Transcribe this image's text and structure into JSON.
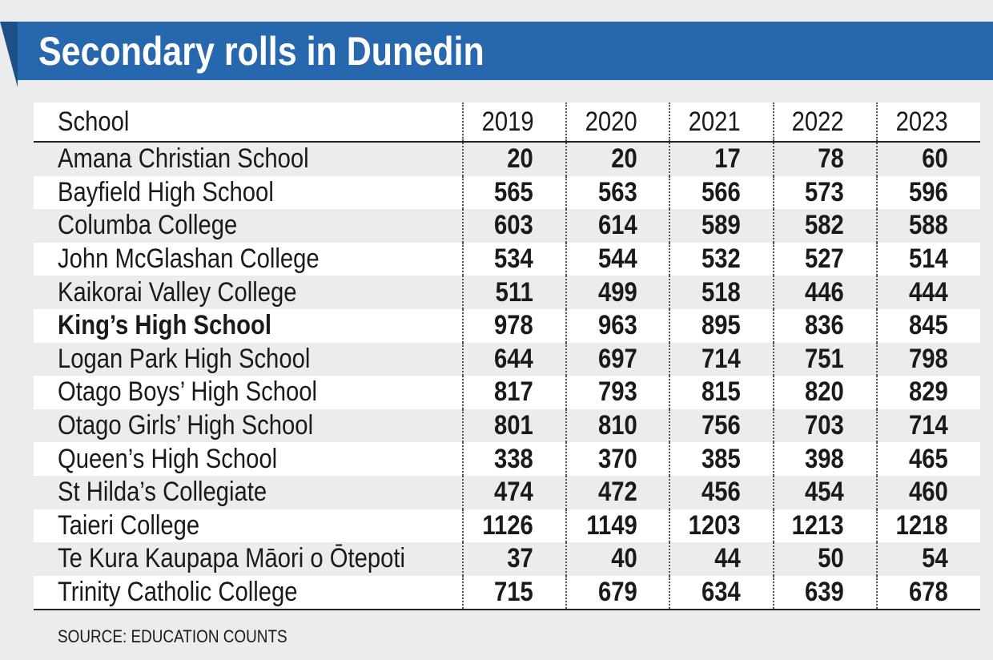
{
  "title": "Secondary rolls in Dunedin",
  "source": "SOURCE: EDUCATION COUNTS",
  "colors": {
    "banner": "#2767ad",
    "banner_fold": "#1e4f86",
    "band": "#ffffff",
    "background": "#ececec"
  },
  "chart_data": {
    "type": "table",
    "title": "Secondary rolls in Dunedin",
    "columns": [
      "School",
      "2019",
      "2020",
      "2021",
      "2022",
      "2023"
    ],
    "rows": [
      {
        "school": "Amana Christian School",
        "values": [
          20,
          20,
          17,
          78,
          60
        ],
        "bold": false
      },
      {
        "school": "Bayfield High School",
        "values": [
          565,
          563,
          566,
          573,
          596
        ],
        "bold": false
      },
      {
        "school": "Columba College",
        "values": [
          603,
          614,
          589,
          582,
          588
        ],
        "bold": false
      },
      {
        "school": "John McGlashan College",
        "values": [
          534,
          544,
          532,
          527,
          514
        ],
        "bold": false
      },
      {
        "school": "Kaikorai Valley College",
        "values": [
          511,
          499,
          518,
          446,
          444
        ],
        "bold": false
      },
      {
        "school": "King’s High School",
        "values": [
          978,
          963,
          895,
          836,
          845
        ],
        "bold": true
      },
      {
        "school": "Logan Park High School",
        "values": [
          644,
          697,
          714,
          751,
          798
        ],
        "bold": false
      },
      {
        "school": "Otago Boys’ High School",
        "values": [
          817,
          793,
          815,
          820,
          829
        ],
        "bold": false
      },
      {
        "school": "Otago Girls’ High School",
        "values": [
          801,
          810,
          756,
          703,
          714
        ],
        "bold": false
      },
      {
        "school": "Queen’s High School",
        "values": [
          338,
          370,
          385,
          398,
          465
        ],
        "bold": false
      },
      {
        "school": "St Hilda’s Collegiate",
        "values": [
          474,
          472,
          456,
          454,
          460
        ],
        "bold": false
      },
      {
        "school": "Taieri College",
        "values": [
          1126,
          1149,
          1203,
          1213,
          1218
        ],
        "bold": false
      },
      {
        "school": "Te Kura Kaupapa Māori o Ōtepoti",
        "values": [
          37,
          40,
          44,
          50,
          54
        ],
        "bold": false
      },
      {
        "school": "Trinity Catholic College",
        "values": [
          715,
          679,
          634,
          639,
          678
        ],
        "bold": false
      }
    ]
  }
}
